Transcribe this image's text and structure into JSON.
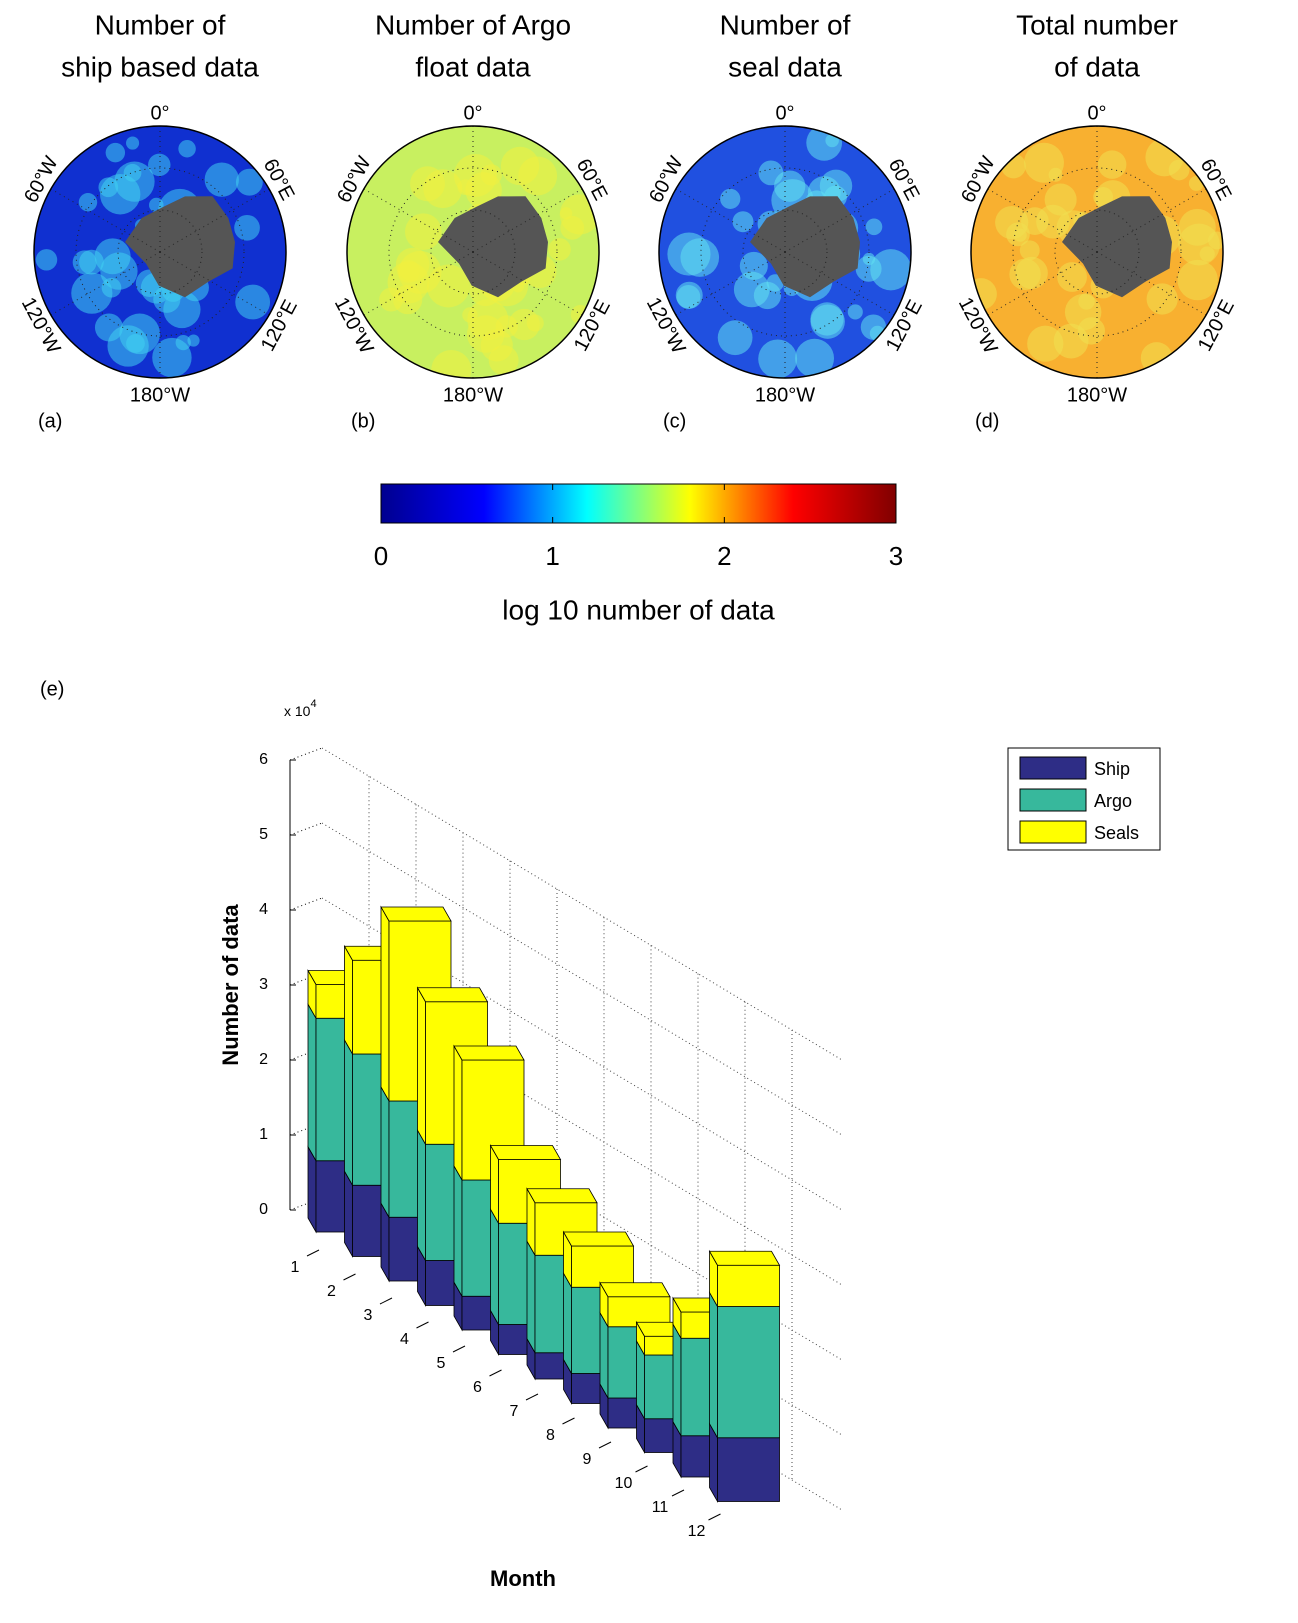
{
  "chart_data": [
    {
      "type": "map",
      "title_lines": [
        "Number of",
        "ship based data"
      ],
      "panel_label": "(a)",
      "colors": [
        "#1030d0",
        "#40d0f0"
      ],
      "lon_labels": {
        "top": "0°",
        "top_right": "60°E",
        "bottom_right": "120°E",
        "bottom": "180°W",
        "bottom_left": "120°W",
        "top_left": "60°W"
      }
    },
    {
      "type": "map",
      "title_lines": [
        "Number of Argo",
        "float data"
      ],
      "panel_label": "(b)",
      "colors": [
        "#c8f060",
        "#f0f040"
      ],
      "lon_labels": {
        "top": "0°",
        "top_right": "60°E",
        "bottom_right": "120°E",
        "bottom": "180°W",
        "bottom_left": "120°W",
        "top_left": "60°W"
      }
    },
    {
      "type": "map",
      "title_lines": [
        "Number of",
        "seal data"
      ],
      "panel_label": "(c)",
      "colors": [
        "#2050e0",
        "#60e0f0"
      ],
      "lon_labels": {
        "top": "0°",
        "top_right": "60°E",
        "bottom_right": "120°E",
        "bottom": "180°W",
        "bottom_left": "120°W",
        "top_left": "60°W"
      }
    },
    {
      "type": "map",
      "title_lines": [
        "Total number",
        "of data"
      ],
      "panel_label": "(d)",
      "colors": [
        "#f8b030",
        "#f0e050"
      ],
      "lon_labels": {
        "top": "0°",
        "top_right": "60°E",
        "bottom_right": "120°E",
        "bottom": "180°W",
        "bottom_left": "120°W",
        "top_left": "60°W"
      }
    },
    {
      "type": "colorbar",
      "label": "log 10 number of data",
      "lim": [
        0,
        3
      ],
      "ticks": [
        0,
        1,
        2,
        3
      ],
      "colors": [
        "#00008f",
        "#0000ff",
        "#00ffff",
        "#ffff00",
        "#ff0000",
        "#800000"
      ]
    },
    {
      "type": "bar3d",
      "stacked": true,
      "panel_label": "(e)",
      "xlabel": "Month",
      "ylabel": "Number of data",
      "y_scale_label": {
        "base": "x 10",
        "exponent": "4"
      },
      "categories": [
        "1",
        "2",
        "3",
        "4",
        "5",
        "6",
        "7",
        "8",
        "9",
        "10",
        "11",
        "12"
      ],
      "series": [
        {
          "name": "Ship",
          "color": "#2e2d86",
          "values": [
            0.95,
            0.95,
            0.85,
            0.6,
            0.45,
            0.4,
            0.35,
            0.4,
            0.4,
            0.45,
            0.55,
            0.85
          ]
        },
        {
          "name": "Argo",
          "color": "#37b89c",
          "values": [
            1.9,
            1.75,
            1.55,
            1.55,
            1.55,
            1.35,
            1.3,
            1.15,
            0.95,
            0.85,
            1.3,
            1.75
          ]
        },
        {
          "name": "Seals",
          "color": "#ffff00",
          "values": [
            0.45,
            1.25,
            2.4,
            1.9,
            1.6,
            0.85,
            0.7,
            0.55,
            0.4,
            0.25,
            0.35,
            0.55
          ]
        }
      ],
      "ylim": [
        0,
        6
      ],
      "yticks": [
        0,
        1,
        2,
        3,
        4,
        5,
        6
      ],
      "grid": true,
      "legend": "top-right"
    }
  ]
}
